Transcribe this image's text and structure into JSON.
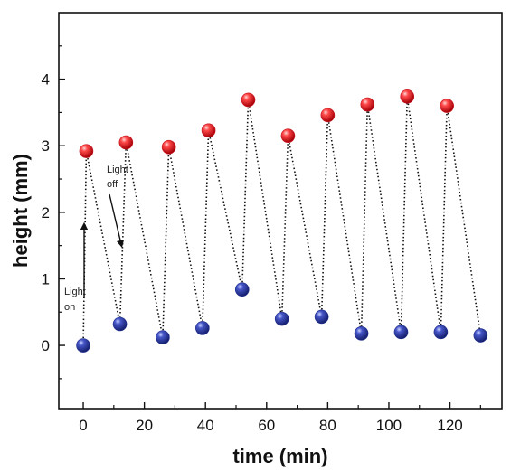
{
  "chart_data": {
    "type": "scatter",
    "xlabel": "time (min)",
    "ylabel": "height (mm)",
    "xlim": [
      -8,
      137
    ],
    "ylim": [
      -0.95,
      5.0
    ],
    "xticks": [
      0,
      20,
      40,
      60,
      80,
      100,
      120
    ],
    "yticks": [
      0,
      1,
      2,
      3,
      4
    ],
    "grid": false,
    "colors": {
      "on": "#c8141e",
      "off": "#1f2e8c"
    },
    "sequence": [
      {
        "x": 0,
        "y": 0.0,
        "state": "off"
      },
      {
        "x": 1,
        "y": 2.92,
        "state": "on"
      },
      {
        "x": 12,
        "y": 0.32,
        "state": "off"
      },
      {
        "x": 14,
        "y": 3.05,
        "state": "on"
      },
      {
        "x": 26,
        "y": 0.12,
        "state": "off"
      },
      {
        "x": 28,
        "y": 2.98,
        "state": "on"
      },
      {
        "x": 39,
        "y": 0.26,
        "state": "off"
      },
      {
        "x": 41,
        "y": 3.23,
        "state": "on"
      },
      {
        "x": 52,
        "y": 0.84,
        "state": "off"
      },
      {
        "x": 54,
        "y": 3.69,
        "state": "on"
      },
      {
        "x": 65,
        "y": 0.4,
        "state": "off"
      },
      {
        "x": 67,
        "y": 3.15,
        "state": "on"
      },
      {
        "x": 78,
        "y": 0.43,
        "state": "off"
      },
      {
        "x": 80,
        "y": 3.46,
        "state": "on"
      },
      {
        "x": 91,
        "y": 0.18,
        "state": "off"
      },
      {
        "x": 93,
        "y": 3.62,
        "state": "on"
      },
      {
        "x": 104,
        "y": 0.2,
        "state": "off"
      },
      {
        "x": 106,
        "y": 3.74,
        "state": "on"
      },
      {
        "x": 117,
        "y": 0.2,
        "state": "off"
      },
      {
        "x": 119,
        "y": 3.6,
        "state": "on"
      },
      {
        "x": 130,
        "y": 0.15,
        "state": "off"
      }
    ],
    "annotations": [
      {
        "text": [
          "Light",
          "on"
        ],
        "arrow": "up"
      },
      {
        "text": [
          "Light",
          "off"
        ],
        "arrow": "down"
      }
    ]
  }
}
